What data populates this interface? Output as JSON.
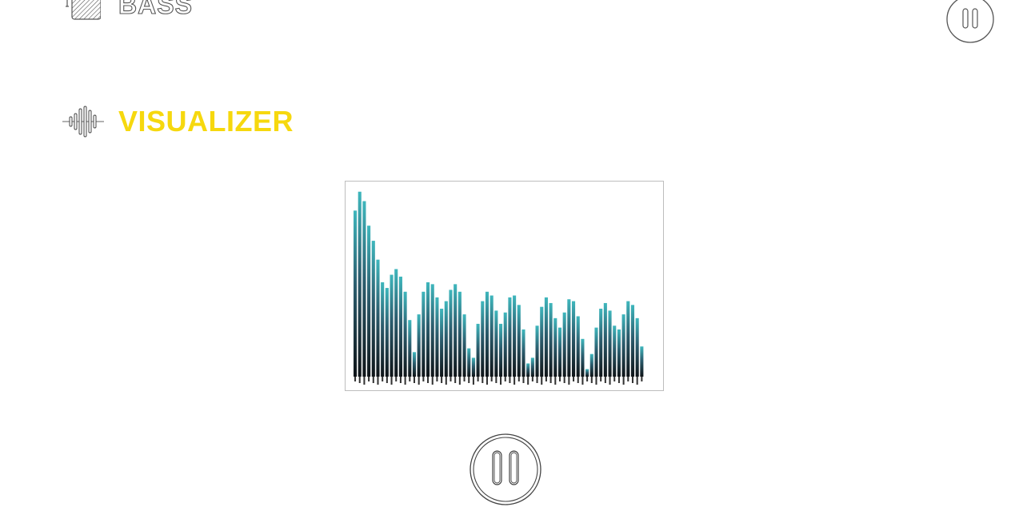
{
  "sections": {
    "bass": {
      "title": "BASS",
      "icon": "equalizer-box-icon"
    },
    "visualizer": {
      "title": "VISUALIZER",
      "icon": "waveform-icon"
    }
  },
  "controls": {
    "top_pause_icon": "pause-icon",
    "bottom_pause_icon": "pause-icon"
  },
  "colors": {
    "accent": "#f6d80e",
    "bar_top": "#3fb7bd",
    "bar_mid": "#2c5e6f",
    "bar_bottom": "#0f1418"
  },
  "spectrum": {
    "bars": [
      0.88,
      0.98,
      0.93,
      0.8,
      0.72,
      0.62,
      0.5,
      0.47,
      0.54,
      0.57,
      0.53,
      0.45,
      0.3,
      0.13,
      0.33,
      0.45,
      0.5,
      0.49,
      0.42,
      0.36,
      0.4,
      0.46,
      0.49,
      0.45,
      0.33,
      0.15,
      0.1,
      0.28,
      0.4,
      0.45,
      0.43,
      0.35,
      0.28,
      0.34,
      0.42,
      0.43,
      0.38,
      0.25,
      0.07,
      0.1,
      0.27,
      0.37,
      0.42,
      0.39,
      0.31,
      0.26,
      0.34,
      0.41,
      0.4,
      0.32,
      0.2,
      0.04,
      0.12,
      0.26,
      0.36,
      0.39,
      0.35,
      0.27,
      0.25,
      0.33,
      0.4,
      0.38,
      0.31,
      0.16
    ]
  }
}
